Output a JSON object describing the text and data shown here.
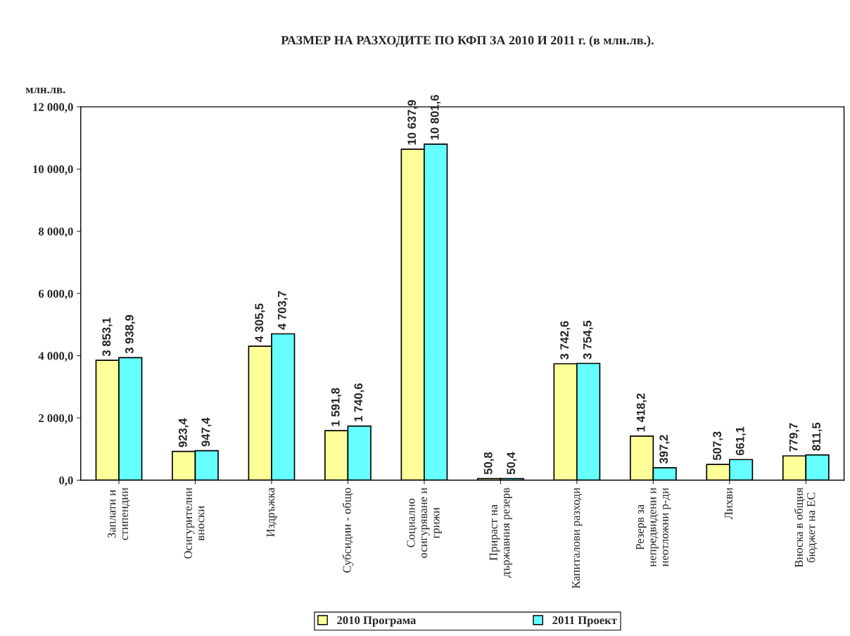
{
  "chart_data": {
    "type": "bar",
    "title": "РАЗМЕР НА РАЗХОДИТЕ ПО КФП ЗА 2010 И 2011 г. (в млн.лв.).",
    "ylabel": "млн.лв.",
    "categories": [
      "Заплати и\nстипендии",
      "Осигурителни\nвноски",
      "Издръжка",
      "Субсидии - общо",
      "Социално\nосигуряване и\nгрижи",
      "Прираст на\nдържавния резерв",
      "Капиталови разходи",
      "Резерв за\nнепредвидени и\nнеотложни р-ди",
      "Лихви",
      "Вноска в общия\nбюджет на ЕС"
    ],
    "series": [
      {
        "name": "2010 Програма",
        "color": "#ffff99",
        "values": [
          3853.1,
          923.4,
          4305.5,
          1591.8,
          10637.9,
          50.8,
          3742.6,
          1418.2,
          507.3,
          779.7
        ],
        "value_labels": [
          "3 853,1",
          "923,4",
          "4 305,5",
          "1 591,8",
          "10 637,9",
          "50,8",
          "3 742,6",
          "1 418,2",
          "507,3",
          "779,7"
        ]
      },
      {
        "name": "2011 Проект",
        "color": "#66ffff",
        "values": [
          3938.9,
          947.4,
          4703.7,
          1740.6,
          10801.6,
          50.4,
          3754.5,
          397.2,
          661.1,
          811.5
        ],
        "value_labels": [
          "3 938,9",
          "947,4",
          "4 703,7",
          "1 740,6",
          "10 801,6",
          "50,4",
          "3 754,5",
          "397,2",
          "661,1",
          "811,5"
        ]
      }
    ],
    "ylim": [
      0,
      12000
    ],
    "yticks": [
      {
        "value": 0,
        "label": "0,0"
      },
      {
        "value": 2000,
        "label": "2 000,0"
      },
      {
        "value": 4000,
        "label": "4 000,0"
      },
      {
        "value": 6000,
        "label": "6 000,0"
      },
      {
        "value": 8000,
        "label": "8 000,0"
      },
      {
        "value": 10000,
        "label": "10 000,0"
      },
      {
        "value": 12000,
        "label": "12 000,0"
      }
    ],
    "grid": false,
    "legend": "bottom"
  }
}
